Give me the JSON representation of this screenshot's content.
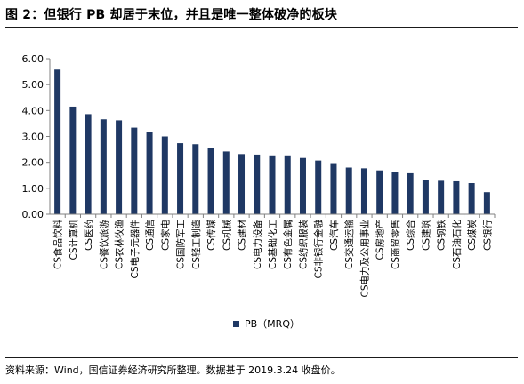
{
  "figure": {
    "title": "图 2：但银行 PB 却居于末位，并且是唯一整体破净的板块",
    "source": "资料来源：Wind，国信证券经济研究所整理。数据基于 2019.3.24 收盘价。",
    "bar_color": "#1f3864"
  },
  "chart_data": {
    "type": "bar",
    "categories": [
      "CS食品饮料",
      "CS计算机",
      "CS医药",
      "CS餐饮旅游",
      "CS农林牧渔",
      "CS电子元器件",
      "CS通信",
      "CS家电",
      "CS国防军工",
      "CS轻工制造",
      "CS传媒",
      "CS机械",
      "CS建材",
      "CS电力设备",
      "CS基础化工",
      "CS有色金属",
      "CS纺织服装",
      "CS非银行金融",
      "CS汽车",
      "CS交通运输",
      "CS电力及公用事业",
      "CS房地产",
      "CS商贸零售",
      "CS综合",
      "CS建筑",
      "CS钢铁",
      "CS石油石化",
      "CS煤炭",
      "CS银行"
    ],
    "series": [
      {
        "name": "PB（MRQ）",
        "values": [
          5.58,
          4.15,
          3.86,
          3.66,
          3.62,
          3.34,
          3.16,
          3.0,
          2.74,
          2.7,
          2.55,
          2.42,
          2.32,
          2.3,
          2.27,
          2.27,
          2.17,
          2.07,
          1.97,
          1.8,
          1.77,
          1.69,
          1.64,
          1.58,
          1.33,
          1.29,
          1.27,
          1.2,
          0.85
        ]
      }
    ],
    "ylim": [
      0,
      6
    ],
    "yticks": [
      "0.00",
      "1.00",
      "2.00",
      "3.00",
      "4.00",
      "5.00",
      "6.00"
    ],
    "grid": false,
    "legend": "bottom-center"
  }
}
